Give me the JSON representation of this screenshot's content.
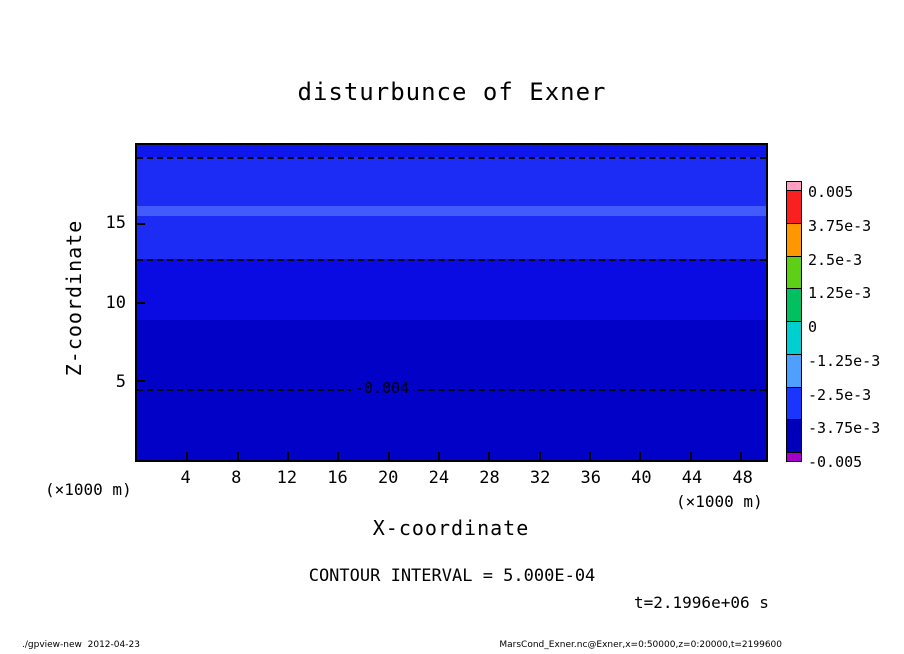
{
  "title": "disturbunce of Exner",
  "axes": {
    "x_label": "X-coordinate",
    "x_unit": "(×1000 m)",
    "y_label": "Z-coordinate",
    "y_unit": "(×1000 m)",
    "x_ticks": [
      4,
      8,
      12,
      16,
      20,
      24,
      28,
      32,
      36,
      40,
      44,
      48
    ],
    "y_ticks": [
      5,
      10,
      15
    ]
  },
  "annotations": {
    "contour_interval": "CONTOUR INTERVAL = 5.000E-04",
    "time": "t=2.1996e+06 s"
  },
  "footer": {
    "left": "./gpview-new  2012-04-23",
    "right": "MarsCond_Exner.nc@Exner,x=0:50000,z=0:20000,t=2199600"
  },
  "colorbar": {
    "labels": [
      "0.005",
      "3.75e-3",
      "2.5e-3",
      "1.25e-3",
      "0",
      "-1.25e-3",
      "-2.5e-3",
      "-3.75e-3",
      "-0.005"
    ],
    "cap_top_color": "#ff9ec2",
    "cap_bottom_color": "#a400cc",
    "segment_colors": [
      "#fb2020",
      "#ff9800",
      "#5ecf17",
      "#00c060",
      "#00cfd0",
      "#4f9fff",
      "#1a35ff",
      "#0000bb"
    ]
  },
  "plot": {
    "bands": [
      {
        "top_pct": 0,
        "bottom_pct": 3.8,
        "color": "#0e18ec"
      },
      {
        "top_pct": 3.8,
        "bottom_pct": 19.4,
        "color": "#1c2cf4"
      },
      {
        "top_pct": 19.4,
        "bottom_pct": 22.6,
        "color": "#415cfa"
      },
      {
        "top_pct": 22.6,
        "bottom_pct": 36.1,
        "color": "#1c2cf4"
      },
      {
        "top_pct": 36.1,
        "bottom_pct": 55.5,
        "color": "#0a0ae2"
      },
      {
        "top_pct": 55.5,
        "bottom_pct": 100,
        "color": "#0101c8"
      }
    ],
    "contour_lines": [
      {
        "top_pct": 3.8,
        "label": ""
      },
      {
        "top_pct": 36.1,
        "label": ""
      },
      {
        "top_pct": 77.4,
        "label": "-0.004",
        "label_left_pct": 34,
        "label_bg": "#0101c8"
      }
    ]
  },
  "chart_data": {
    "type": "heatmap",
    "title": "disturbunce of Exner",
    "xlabel": "X-coordinate (×1000 m)",
    "ylabel": "Z-coordinate (×1000 m)",
    "xlim": [
      0,
      50
    ],
    "ylim": [
      0,
      20
    ],
    "grid": false,
    "legend_position": "right-colorbar",
    "contour_interval": 0.0005,
    "time_label": "t=2.1996e+06 s",
    "colorbar_levels": [
      0.005,
      0.00375,
      0.0025,
      0.00125,
      0,
      -0.00125,
      -0.0025,
      -0.00375,
      -0.005
    ],
    "field_description": "Exner function disturbance, horizontally uniform; vertical bands of shading",
    "vertical_profile_bands": [
      {
        "z_range": [
          0,
          8.9
        ],
        "approx_value": -0.004
      },
      {
        "z_range": [
          8.9,
          12.8
        ],
        "approx_value": -0.0036
      },
      {
        "z_range": [
          12.8,
          15.5
        ],
        "approx_value": -0.0032
      },
      {
        "z_range": [
          15.5,
          16.1
        ],
        "approx_value": -0.0028
      },
      {
        "z_range": [
          16.1,
          19.2
        ],
        "approx_value": -0.0032
      },
      {
        "z_range": [
          19.2,
          20
        ],
        "approx_value": -0.0033
      }
    ],
    "labeled_contours": [
      {
        "value": -0.004,
        "z": 4.5,
        "style": "dashed",
        "label": "-0.004"
      }
    ],
    "dashed_contour_z_positions": [
      19.2,
      12.8,
      4.5
    ]
  }
}
